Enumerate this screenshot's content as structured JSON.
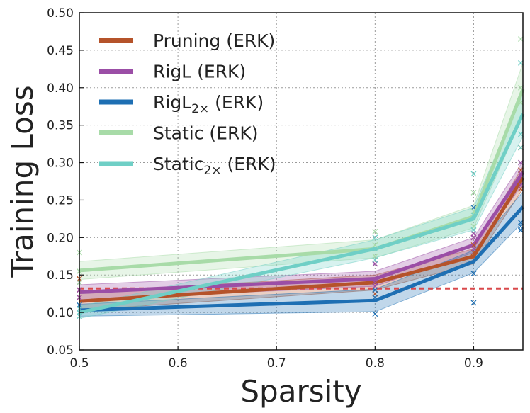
{
  "chart_data": {
    "type": "line",
    "xlabel": "Sparsity",
    "ylabel": "Training Loss",
    "xlim": [
      0.5,
      0.95
    ],
    "ylim": [
      0.05,
      0.5
    ],
    "xticks": [
      "0.5",
      "0.6",
      "0.7",
      "0.8",
      "0.9"
    ],
    "xtick_values": [
      0.5,
      0.6,
      0.7,
      0.8,
      0.9
    ],
    "yticks": [
      "0.05",
      "0.10",
      "0.15",
      "0.20",
      "0.25",
      "0.30",
      "0.35",
      "0.40",
      "0.45",
      "0.50"
    ],
    "ytick_values": [
      0.05,
      0.1,
      0.15,
      0.2,
      0.25,
      0.3,
      0.35,
      0.4,
      0.45,
      0.5
    ],
    "grid": true,
    "legend_position": "top-left",
    "x": [
      0.5,
      0.8,
      0.9,
      0.95
    ],
    "reference_line": {
      "y": 0.132,
      "color": "#d9494b",
      "style": "dashed"
    },
    "series": [
      {
        "name": "Pruning (ERK)",
        "base": "Pruning",
        "subscript": "",
        "suffix": " (ERK)",
        "color": "#b5532a",
        "values": [
          0.115,
          0.14,
          0.175,
          0.28
        ],
        "band": [
          0.012,
          0.01,
          0.01,
          0.015
        ],
        "runs": [
          [
            0.145,
            0.13,
            0.12
          ],
          [
            0.14,
            0.135,
            0.125
          ],
          [
            0.2,
            0.19,
            0.18
          ],
          [
            0.32,
            0.29,
            0.265
          ]
        ]
      },
      {
        "name": "RigL (ERK)",
        "base": "RigL",
        "subscript": "",
        "suffix": " (ERK)",
        "color": "#9b4ea6",
        "values": [
          0.127,
          0.145,
          0.19,
          0.287
        ],
        "band": [
          0.01,
          0.01,
          0.01,
          0.015
        ],
        "runs": [
          [
            0.14,
            0.13,
            0.12
          ],
          [
            0.165,
            0.135,
            0.14
          ],
          [
            0.205,
            0.185,
            0.2
          ],
          [
            0.3,
            0.27,
            0.285
          ]
        ]
      },
      {
        "name": "RigL2× (ERK)",
        "base": "RigL",
        "subscript": "2×",
        "suffix": " (ERK)",
        "color": "#1e6fb3",
        "values": [
          0.103,
          0.116,
          0.168,
          0.241
        ],
        "band": [
          0.008,
          0.015,
          0.015,
          0.02
        ],
        "runs": [
          [
            0.105,
            0.1,
            0.11
          ],
          [
            0.098,
            0.12,
            0.13
          ],
          [
            0.113,
            0.24,
            0.152
          ],
          [
            0.22,
            0.21,
            0.215
          ]
        ]
      },
      {
        "name": "Static (ERK)",
        "base": "Static",
        "subscript": "",
        "suffix": " (ERK)",
        "color": "#a8dba8",
        "values": [
          0.156,
          0.185,
          0.228,
          0.398
        ],
        "band": [
          0.012,
          0.012,
          0.015,
          0.035
        ],
        "runs": [
          [
            0.18,
            0.155,
            0.14
          ],
          [
            0.208,
            0.19,
            0.175
          ],
          [
            0.26,
            0.235,
            0.215
          ],
          [
            0.465,
            0.4,
            0.38
          ]
        ]
      },
      {
        "name": "Static2× (ERK)",
        "base": "Static",
        "subscript": "2×",
        "suffix": " (ERK)",
        "color": "#6fcfc6",
        "values": [
          0.1,
          0.185,
          0.225,
          0.365
        ],
        "band": [
          0.008,
          0.012,
          0.015,
          0.03
        ],
        "runs": [
          [
            0.095,
            0.1,
            0.105
          ],
          [
            0.2,
            0.185,
            0.17
          ],
          [
            0.285,
            0.23,
            0.21
          ],
          [
            0.433,
            0.338,
            0.32
          ]
        ]
      }
    ]
  }
}
